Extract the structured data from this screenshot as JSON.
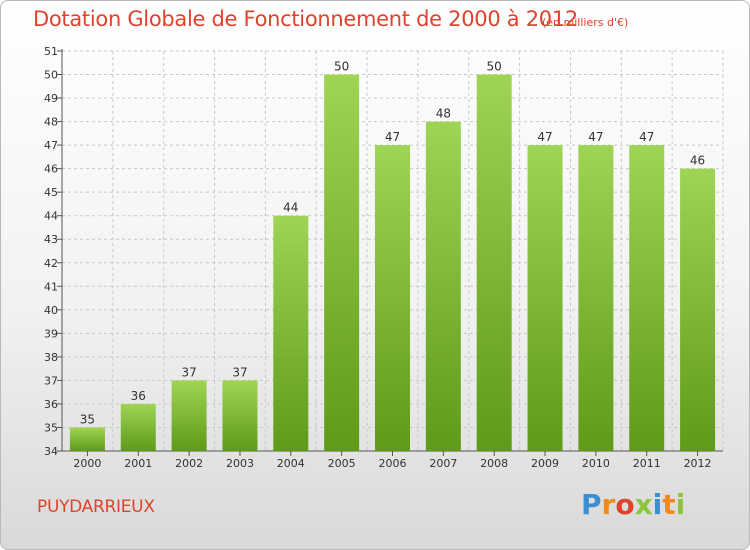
{
  "header": {
    "title": "Dotation Globale de Fonctionnement de 2000 à 2012",
    "unit": "(en milliers d'€)"
  },
  "footer": {
    "commune": "PUYDARRIEUX",
    "logo_text": "Proxiti"
  },
  "colors": {
    "title": "#e0422c",
    "bar_top": "#9fd455",
    "bar_bottom": "#5f9a18",
    "axis": "#555555",
    "grid": "#c8c8c8"
  },
  "chart_data": {
    "type": "bar",
    "title": "Dotation Globale de Fonctionnement de 2000 à 2012",
    "xlabel": "",
    "ylabel": "",
    "categories": [
      "2000",
      "2001",
      "2002",
      "2003",
      "2004",
      "2005",
      "2006",
      "2007",
      "2008",
      "2009",
      "2010",
      "2011",
      "2012"
    ],
    "values": [
      35,
      36,
      37,
      37,
      44,
      50,
      47,
      48,
      50,
      47,
      47,
      47,
      46
    ],
    "ylim": [
      34,
      51
    ],
    "yticks": [
      34,
      35,
      36,
      37,
      38,
      39,
      40,
      41,
      42,
      43,
      44,
      45,
      46,
      47,
      48,
      49,
      50,
      51
    ],
    "grid": true,
    "data_labels": true
  }
}
